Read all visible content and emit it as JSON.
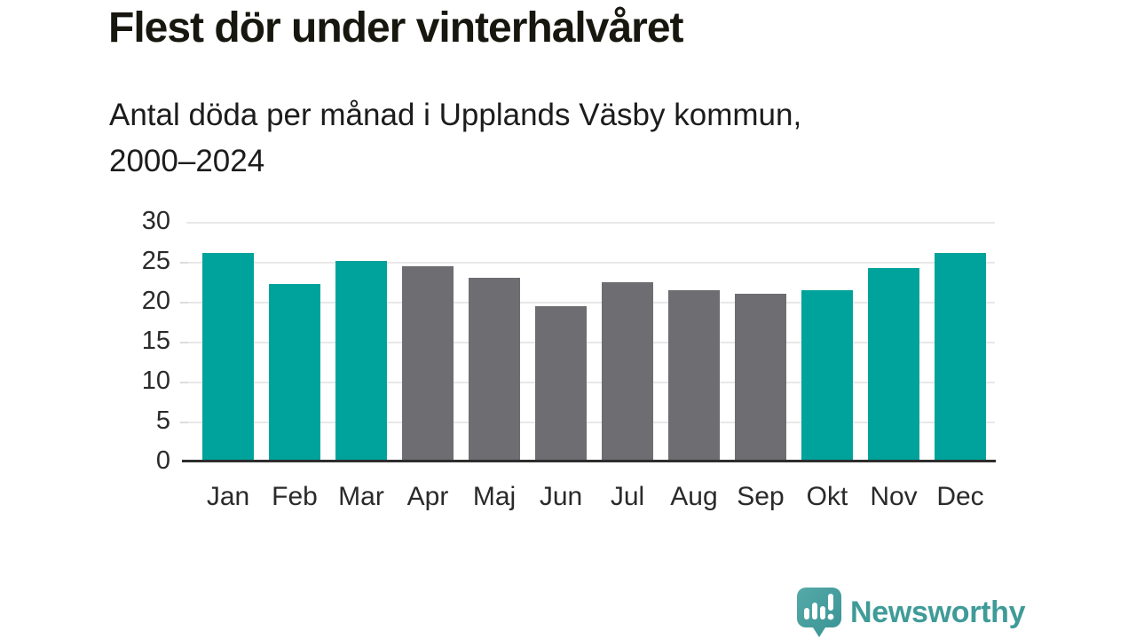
{
  "header": {
    "title": "Flest dör under vinterhalvåret",
    "subtitle": "Antal döda per månad i Upplands Väsby kommun,\n2000–2024"
  },
  "chart_data": {
    "type": "bar",
    "title": "Flest dör under vinterhalvåret",
    "subtitle": "Antal döda per månad i Upplands Väsby kommun, 2000–2024",
    "categories": [
      "Jan",
      "Feb",
      "Mar",
      "Apr",
      "Maj",
      "Jun",
      "Jul",
      "Aug",
      "Sep",
      "Okt",
      "Nov",
      "Dec"
    ],
    "values": [
      26.1,
      22.2,
      25.1,
      24.4,
      23.0,
      19.4,
      22.5,
      21.4,
      21.0,
      21.5,
      24.2,
      26.1
    ],
    "bar_seasons": [
      "winter",
      "winter",
      "winter",
      "summer",
      "summer",
      "summer",
      "summer",
      "summer",
      "summer",
      "winter",
      "winter",
      "winter"
    ],
    "palette": {
      "winter": "#00a39b",
      "summer": "#6d6d72"
    },
    "xlabel": "",
    "ylabel": "",
    "ylim": [
      0,
      30
    ],
    "yticks": [
      0,
      5,
      10,
      15,
      20,
      25,
      30
    ],
    "grid": true,
    "legend": false,
    "gridline_color": "#e8e8e8",
    "axis_color": "#2d2d2d",
    "tick_label_color": "#2a2a2a"
  },
  "footer": {
    "brand": "Newsworthy",
    "brand_color": "#3f9b98",
    "logo_icon": "bar-chart-speech-bubble-icon",
    "logo_icon_color": "#459c9d"
  }
}
